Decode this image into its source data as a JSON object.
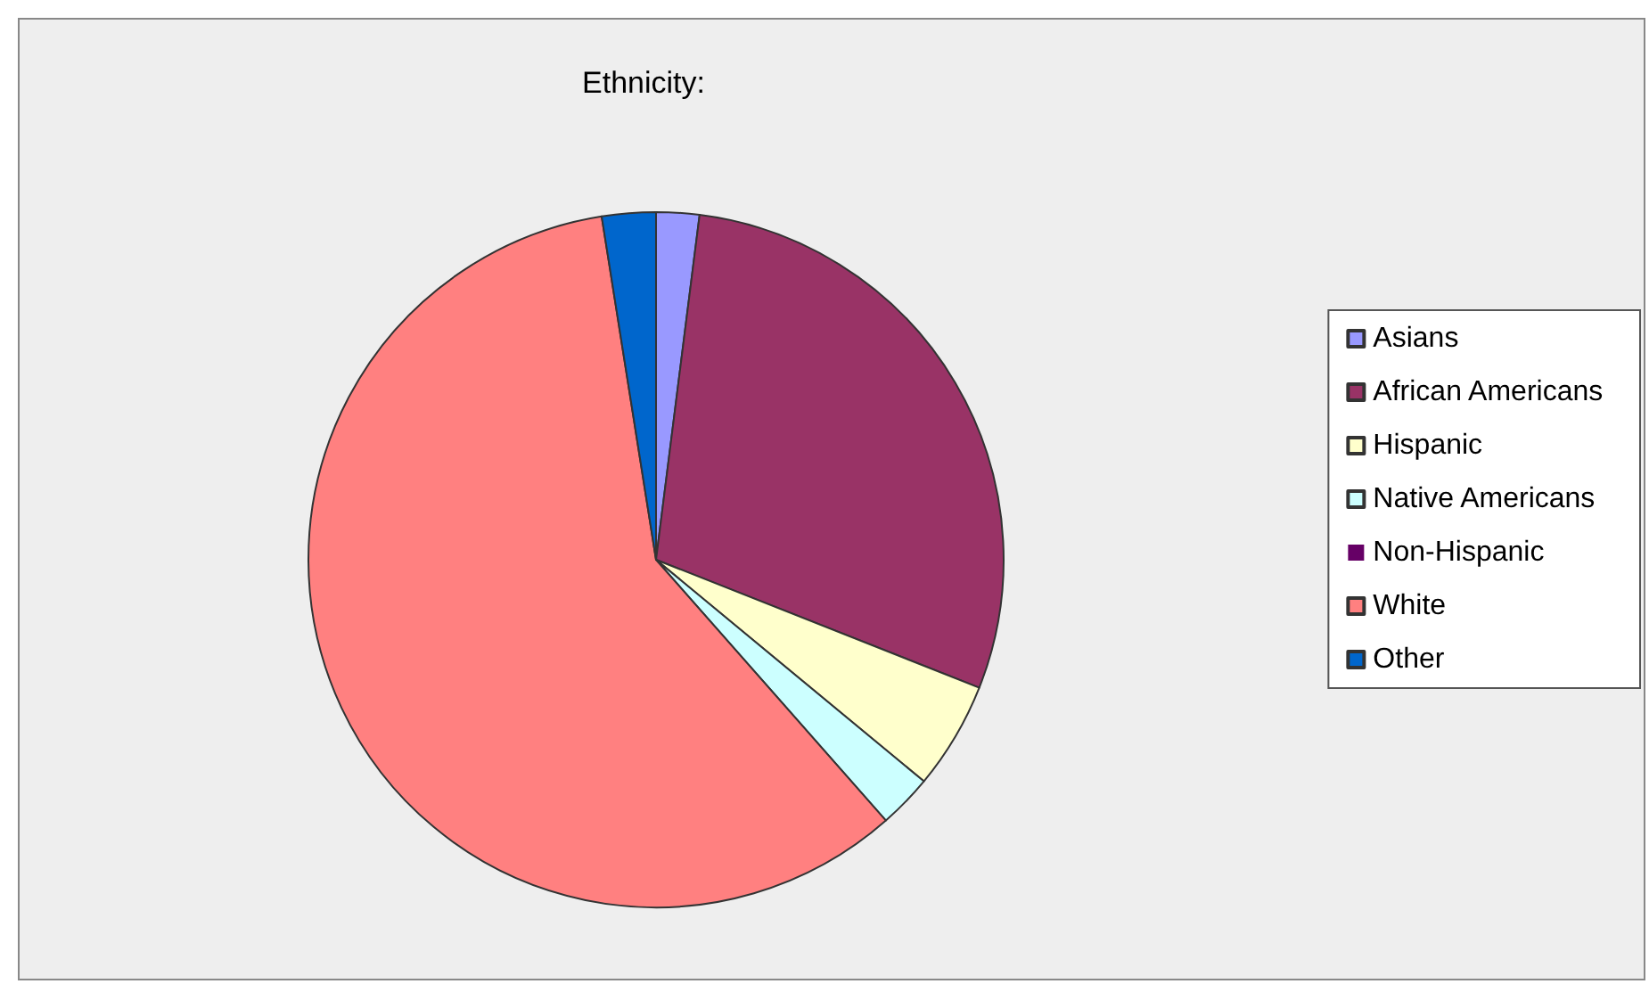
{
  "chart_data": {
    "type": "pie",
    "title": "Ethnicity:",
    "categories": [
      "Asians",
      "African Americans",
      "Hispanic",
      "Native Americans",
      "Non-Hispanic",
      "White",
      "Other"
    ],
    "values": [
      2,
      29,
      5,
      2.5,
      0,
      59,
      2.5
    ],
    "colors": [
      "#9999ff",
      "#993366",
      "#ffffcc",
      "#ccffff",
      "#660066",
      "#ff8080",
      "#0066cc"
    ],
    "legend": "right"
  }
}
